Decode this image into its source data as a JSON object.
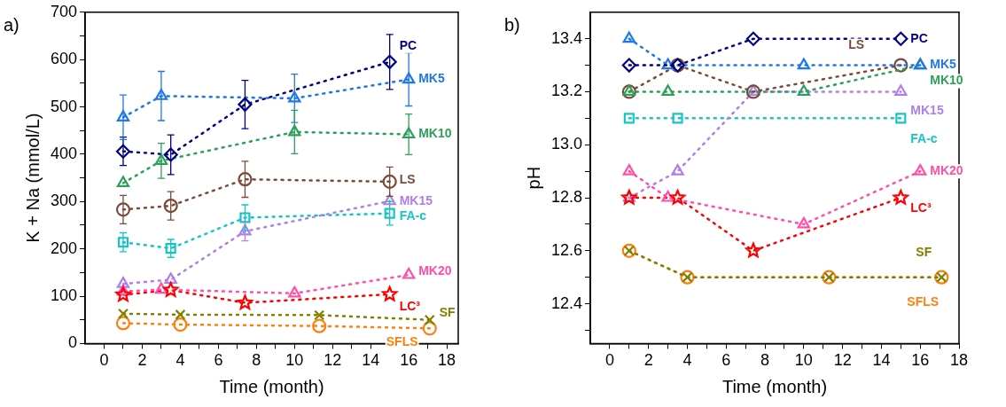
{
  "chart_data": [
    {
      "type": "line",
      "title": "a)",
      "xlabel": "Time (month)",
      "ylabel": "K + Na (mmol/L)",
      "xlim": [
        -1,
        18.6
      ],
      "xticks": [
        0,
        {
          "value": 1,
          "label": null
        },
        2,
        {
          "value": 3,
          "label": null
        },
        4,
        {
          "value": 5,
          "label": null
        },
        6,
        {
          "value": 7,
          "label": null
        },
        8,
        {
          "value": 9,
          "label": null
        },
        10,
        {
          "value": 11,
          "label": null
        },
        12,
        {
          "value": 13,
          "label": null
        },
        14,
        {
          "value": 15,
          "label": null
        },
        16,
        {
          "value": 17,
          "label": null
        },
        18
      ],
      "ylim": [
        0,
        700
      ],
      "yticks": [
        0,
        {
          "value": 50,
          "label": null
        },
        100,
        {
          "value": 150,
          "label": null
        },
        200,
        {
          "value": 250,
          "label": null
        },
        300,
        {
          "value": 350,
          "label": null
        },
        400,
        {
          "value": 450,
          "label": null
        },
        500,
        {
          "value": 550,
          "label": null
        },
        600,
        {
          "value": 650,
          "label": null
        },
        700
      ],
      "line_style": "dotted",
      "legend": false,
      "grid": false,
      "series": [
        {
          "name": "PC",
          "color": "#000080",
          "marker": "diamond",
          "x": [
            1,
            3.5,
            7.4,
            15
          ],
          "values": [
            406,
            399,
            505,
            595
          ],
          "errors": [
            30,
            42,
            51,
            58
          ]
        },
        {
          "name": "MK5",
          "color": "#1f78e8",
          "marker": "triangle",
          "x": [
            1,
            3,
            10,
            16
          ],
          "values": [
            478,
            523,
            518,
            558
          ],
          "errors": [
            47,
            52,
            51,
            56
          ]
        },
        {
          "name": "MK10",
          "color": "#2ca05a",
          "marker": "triangle",
          "x": [
            1,
            3,
            10,
            16
          ],
          "values": [
            339,
            386,
            447,
            442
          ],
          "errors": [
            null,
            37,
            46,
            43
          ]
        },
        {
          "name": "LS",
          "color": "#7b4a3a",
          "marker": "circle",
          "x": [
            1,
            3.5,
            7.4,
            15
          ],
          "values": [
            283,
            291,
            347,
            342
          ],
          "errors": [
            30,
            30,
            38,
            31
          ]
        },
        {
          "name": "MK15",
          "color": "#b07ee8",
          "marker": "triangle",
          "x": [
            1,
            3.5,
            7.4,
            15
          ],
          "values": [
            126,
            135,
            237,
            301
          ],
          "errors": [
            null,
            null,
            20,
            null
          ]
        },
        {
          "name": "FA-c",
          "color": "#17c4c4",
          "marker": "square",
          "x": [
            1,
            3.5,
            7.4,
            15
          ],
          "values": [
            214,
            201,
            266,
            275
          ],
          "errors": [
            20,
            19,
            27,
            25
          ]
        },
        {
          "name": "MK20",
          "color": "#ff4fa8",
          "marker": "triangle",
          "x": [
            1,
            3,
            10,
            16
          ],
          "values": [
            110,
            114,
            106,
            145
          ]
        },
        {
          "name": "LC³",
          "color": "#ff0000",
          "marker": "star",
          "x": [
            1,
            3.5,
            7.4,
            15
          ],
          "values": [
            103,
            113,
            86,
            104
          ]
        },
        {
          "name": "SF",
          "color": "#808000",
          "marker": "cross",
          "x": [
            1,
            4,
            11.3,
            17.1
          ],
          "values": [
            63,
            61,
            60,
            50
          ]
        },
        {
          "name": "SFLS",
          "color": "#ff7f0e",
          "marker": "circle",
          "x": [
            1,
            4,
            11.3,
            17.1
          ],
          "values": [
            43,
            40,
            37,
            32
          ]
        }
      ]
    },
    {
      "type": "line",
      "title": "b)",
      "xlabel": "Time (month)",
      "ylabel": "pH",
      "xlim": [
        -1,
        18
      ],
      "xticks": [
        0,
        {
          "value": 1,
          "label": null
        },
        2,
        {
          "value": 3,
          "label": null
        },
        4,
        {
          "value": 5,
          "label": null
        },
        6,
        {
          "value": 7,
          "label": null
        },
        8,
        {
          "value": 9,
          "label": null
        },
        10,
        {
          "value": 11,
          "label": null
        },
        12,
        {
          "value": 13,
          "label": null
        },
        14,
        {
          "value": 15,
          "label": null
        },
        16,
        {
          "value": 17,
          "label": null
        },
        18
      ],
      "ylim": [
        12.25,
        13.5
      ],
      "yticks": [
        {
          "value": 12.3,
          "label": null
        },
        {
          "value": 12.4,
          "label": "12.4"
        },
        {
          "value": 12.5,
          "label": null
        },
        {
          "value": 12.6,
          "label": "12.6"
        },
        {
          "value": 12.7,
          "label": null
        },
        {
          "value": 12.8,
          "label": "12.8"
        },
        {
          "value": 12.9,
          "label": null
        },
        {
          "value": 13.0,
          "label": "13.0"
        },
        {
          "value": 13.1,
          "label": null
        },
        {
          "value": 13.2,
          "label": "13.2"
        },
        {
          "value": 13.3,
          "label": null
        },
        {
          "value": 13.4,
          "label": "13.4"
        }
      ],
      "line_style": "dotted",
      "legend": false,
      "grid": false,
      "series": [
        {
          "name": "PC",
          "color": "#000080",
          "marker": "diamond",
          "x": [
            1,
            3.5,
            7.4,
            15
          ],
          "values": [
            13.3,
            13.3,
            13.4,
            13.4
          ]
        },
        {
          "name": "MK5",
          "color": "#1f78e8",
          "marker": "triangle",
          "x": [
            1,
            3,
            10,
            16
          ],
          "values": [
            13.4,
            13.3,
            13.3,
            13.3
          ]
        },
        {
          "name": "MK10",
          "color": "#2ca05a",
          "marker": "triangle",
          "x": [
            1,
            3,
            10,
            16
          ],
          "values": [
            13.2,
            13.2,
            13.2,
            13.3
          ]
        },
        {
          "name": "LS",
          "color": "#7b4a3a",
          "marker": "circle",
          "x": [
            1,
            3.5,
            7.4,
            15
          ],
          "values": [
            13.2,
            13.3,
            13.2,
            13.3
          ]
        },
        {
          "name": "MK15",
          "color": "#b07ee8",
          "marker": "triangle",
          "x": [
            1,
            3.5,
            7.4,
            15
          ],
          "values": [
            12.8,
            12.9,
            13.2,
            13.2
          ]
        },
        {
          "name": "FA-c",
          "color": "#17c4c4",
          "marker": "square",
          "x": [
            1,
            3.5,
            7.4,
            15
          ],
          "values": [
            13.1,
            13.1,
            null,
            13.1
          ]
        },
        {
          "name": "MK20",
          "color": "#ff4fa8",
          "marker": "triangle",
          "x": [
            1,
            3,
            10,
            16
          ],
          "values": [
            12.9,
            12.8,
            12.7,
            12.9
          ]
        },
        {
          "name": "LC³",
          "color": "#ff0000",
          "marker": "star",
          "x": [
            1,
            3.5,
            7.4,
            15
          ],
          "values": [
            12.8,
            12.8,
            12.6,
            12.8
          ]
        },
        {
          "name": "SF",
          "color": "#808000",
          "marker": "cross",
          "x": [
            1,
            4,
            11.3,
            17.1
          ],
          "values": [
            12.6,
            12.5,
            12.5,
            12.5
          ]
        },
        {
          "name": "SFLS",
          "color": "#ff7f0e",
          "marker": "circle",
          "x": [
            1,
            4,
            11.3,
            17.1
          ],
          "values": [
            12.6,
            12.5,
            12.5,
            12.5
          ]
        }
      ]
    }
  ]
}
